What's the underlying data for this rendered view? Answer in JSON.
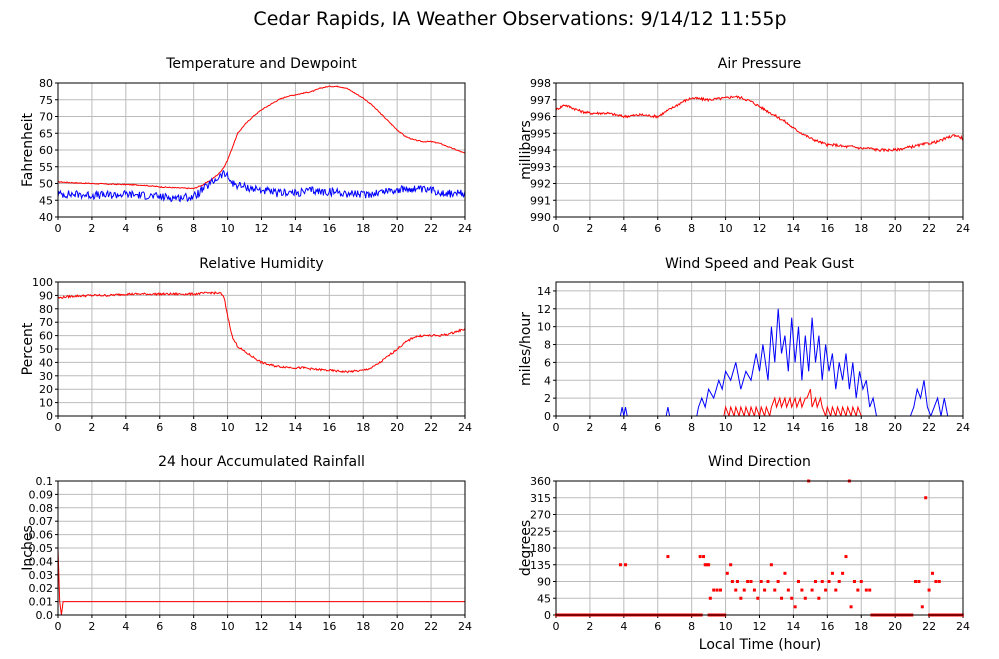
{
  "title": "Cedar Rapids, IA Weather Observations: 9/14/12 11:55p",
  "xlabel": "Local Time (hour)",
  "colors": {
    "red": "#ff0000",
    "blue": "#0000ff",
    "grid": "#bbbbbb"
  },
  "chart_data": [
    {
      "id": "temp",
      "type": "line",
      "title": "Temperature and Dewpoint",
      "xlabel": "",
      "ylabel": "Fahrenheit",
      "xlim": [
        0,
        24
      ],
      "ylim": [
        40,
        80
      ],
      "xticks": [
        "0",
        "2",
        "4",
        "6",
        "8",
        "10",
        "12",
        "14",
        "16",
        "18",
        "20",
        "22",
        "24"
      ],
      "yticks": [
        "40",
        "45",
        "50",
        "55",
        "60",
        "65",
        "70",
        "75",
        "80"
      ],
      "grid": true,
      "series": [
        {
          "color": "#ff0000",
          "noise": 0.15,
          "x": [
            0,
            1,
            2,
            3,
            4,
            5,
            6,
            7,
            8,
            8.5,
            9,
            9.5,
            9.8,
            10,
            10.3,
            10.6,
            11,
            11.5,
            12,
            12.5,
            13,
            13.5,
            14,
            14.5,
            15,
            15.5,
            16,
            16.5,
            17,
            17.5,
            18,
            18.5,
            19,
            19.5,
            20,
            20.5,
            21,
            21.5,
            22,
            22.5,
            23,
            23.5,
            24
          ],
          "y": [
            50.5,
            50.2,
            50,
            49.8,
            49.7,
            49.5,
            49,
            48.7,
            48.5,
            49.5,
            51,
            53,
            55,
            57,
            61,
            65,
            67.5,
            70,
            72,
            73.5,
            75,
            76,
            76.5,
            77,
            77.5,
            78.5,
            79,
            79,
            78.5,
            77,
            75.5,
            73.5,
            71,
            68.5,
            66,
            64,
            63,
            62.5,
            62.5,
            62,
            61,
            60,
            59
          ]
        },
        {
          "color": "#0000ff",
          "noise": 1.2,
          "x": [
            0,
            1,
            2,
            3,
            4,
            5,
            6,
            7,
            8,
            8.5,
            9,
            9.5,
            9.8,
            10,
            10.3,
            10.6,
            11,
            11.5,
            12,
            12.5,
            13,
            13.5,
            14,
            14.5,
            15,
            15.5,
            16,
            16.5,
            17,
            17.5,
            18,
            18.5,
            19,
            19.5,
            20,
            20.5,
            21,
            21.5,
            22,
            22.5,
            23,
            23.5,
            24
          ],
          "y": [
            46.8,
            46.8,
            46.5,
            46.5,
            46.8,
            46.5,
            46,
            45.8,
            46,
            48,
            50,
            52,
            53,
            52,
            50,
            49.5,
            49,
            48.5,
            48,
            47.5,
            47,
            47.5,
            47,
            47.5,
            48,
            47.5,
            47.5,
            47.5,
            47,
            47,
            46.5,
            47,
            47.5,
            48,
            48,
            48.3,
            48.5,
            48,
            48,
            47.5,
            47,
            47,
            46.8
          ]
        }
      ]
    },
    {
      "id": "pressure",
      "type": "line",
      "title": "Air Pressure",
      "xlabel": "",
      "ylabel": "millibars",
      "xlim": [
        0,
        24
      ],
      "ylim": [
        990,
        998
      ],
      "xticks": [
        "0",
        "2",
        "4",
        "6",
        "8",
        "10",
        "12",
        "14",
        "16",
        "18",
        "20",
        "22",
        "24"
      ],
      "yticks": [
        "990",
        "991",
        "992",
        "993",
        "994",
        "995",
        "996",
        "997",
        "998"
      ],
      "grid": true,
      "series": [
        {
          "color": "#ff0000",
          "noise": 0.08,
          "x": [
            0,
            0.5,
            1,
            1.5,
            2,
            3,
            4,
            5,
            6,
            6.5,
            7,
            7.5,
            8,
            9,
            10,
            10.5,
            11,
            11.5,
            12,
            12.5,
            13,
            13.5,
            14,
            14.5,
            15,
            15.5,
            16,
            16.5,
            17,
            17.5,
            18,
            18.5,
            19,
            19.5,
            20,
            20.5,
            21,
            21.5,
            22,
            22.5,
            23,
            23.5,
            24
          ],
          "y": [
            996.4,
            996.7,
            996.5,
            996.3,
            996.2,
            996.2,
            996,
            996.1,
            996,
            996.3,
            996.6,
            996.9,
            997.1,
            997,
            997.1,
            997.2,
            997.1,
            996.9,
            996.6,
            996.3,
            996,
            995.7,
            995.3,
            995,
            994.7,
            994.5,
            994.3,
            994.3,
            994.2,
            994.2,
            994.1,
            994.1,
            994,
            994,
            994,
            994.1,
            994.2,
            994.3,
            994.4,
            994.5,
            994.7,
            994.9,
            994.7
          ]
        }
      ]
    },
    {
      "id": "humidity",
      "type": "line",
      "title": "Relative Humidity",
      "xlabel": "",
      "ylabel": "Percent",
      "xlim": [
        0,
        24
      ],
      "ylim": [
        0,
        100
      ],
      "xticks": [
        "0",
        "2",
        "4",
        "6",
        "8",
        "10",
        "12",
        "14",
        "16",
        "18",
        "20",
        "22",
        "24"
      ],
      "yticks": [
        "0",
        "10",
        "20",
        "30",
        "40",
        "50",
        "60",
        "70",
        "80",
        "90",
        "100"
      ],
      "grid": true,
      "series": [
        {
          "color": "#ff0000",
          "noise": 0.8,
          "x": [
            0,
            0.5,
            1,
            2,
            3,
            3.5,
            4,
            5,
            6,
            7,
            8,
            8.5,
            9,
            9.6,
            9.8,
            10,
            10.3,
            10.6,
            11,
            11.5,
            12,
            12.5,
            13,
            13.5,
            14,
            14.5,
            15,
            15.5,
            16,
            16.5,
            17,
            17.5,
            18,
            18.5,
            19,
            19.5,
            20,
            20.5,
            21,
            21.5,
            22,
            22.5,
            23,
            23.5,
            24
          ],
          "y": [
            88,
            89,
            89.5,
            90,
            90,
            90.5,
            91,
            91,
            91,
            91,
            91,
            91.5,
            92,
            91.5,
            88,
            75,
            58,
            52,
            48,
            44,
            40,
            38,
            37,
            36.5,
            36,
            36,
            35,
            34.5,
            34,
            33.5,
            33,
            33.5,
            34,
            36,
            40,
            45,
            50,
            55,
            59,
            60,
            60,
            60,
            61,
            63,
            65
          ]
        }
      ]
    },
    {
      "id": "wind",
      "type": "line",
      "title": "Wind Speed and Peak Gust",
      "xlabel": "",
      "ylabel": "miles/hour",
      "xlim": [
        0,
        24
      ],
      "ylim": [
        0,
        15
      ],
      "xticks": [
        "0",
        "2",
        "4",
        "6",
        "8",
        "10",
        "12",
        "14",
        "16",
        "18",
        "20",
        "22",
        "24"
      ],
      "yticks": [
        "0",
        "2",
        "4",
        "6",
        "8",
        "10",
        "12",
        "14"
      ],
      "grid": true,
      "series": [
        {
          "color": "#0000ff",
          "noise": 0,
          "x": [
            0,
            3.8,
            3.9,
            4,
            4.1,
            4.2,
            6.5,
            6.6,
            6.7,
            8.3,
            8.4,
            8.6,
            8.8,
            9,
            9.3,
            9.6,
            9.8,
            10,
            10.3,
            10.6,
            10.9,
            11.2,
            11.5,
            11.8,
            12,
            12.2,
            12.5,
            12.7,
            12.9,
            13.1,
            13.3,
            13.5,
            13.7,
            13.9,
            14.1,
            14.3,
            14.5,
            14.7,
            14.9,
            15.1,
            15.3,
            15.5,
            15.7,
            15.9,
            16.1,
            16.3,
            16.5,
            16.7,
            16.9,
            17.1,
            17.3,
            17.5,
            17.7,
            17.9,
            18.1,
            18.3,
            18.5,
            18.7,
            18.9,
            20.9,
            21.1,
            21.3,
            21.5,
            21.7,
            21.9,
            22.1,
            22.3,
            22.5,
            22.7,
            22.9,
            23.1,
            24
          ],
          "y": [
            0,
            0,
            1,
            0,
            1,
            0,
            0,
            1,
            0,
            0,
            1,
            2,
            1,
            3,
            2,
            4,
            3,
            5,
            4,
            6,
            3,
            5,
            4,
            7,
            5,
            8,
            4,
            10,
            6,
            12,
            7,
            9,
            5,
            11,
            6,
            10,
            4,
            9,
            5,
            11,
            6,
            9,
            4,
            8,
            5,
            7,
            3,
            6,
            4,
            7,
            3,
            6,
            2,
            5,
            3,
            4,
            1,
            2,
            0,
            0,
            1,
            3,
            2,
            4,
            1,
            0,
            1,
            2,
            0,
            2,
            0,
            0
          ]
        },
        {
          "color": "#ff0000",
          "noise": 0,
          "x": [
            0,
            9.9,
            10.0,
            10.2,
            10.3,
            10.5,
            10.6,
            10.8,
            10.9,
            11.1,
            11.2,
            11.4,
            11.5,
            11.7,
            11.8,
            12.0,
            12.1,
            12.3,
            12.4,
            12.6,
            12.7,
            12.9,
            13.0,
            13.2,
            13.3,
            13.5,
            13.6,
            13.8,
            13.9,
            14.1,
            14.2,
            14.4,
            14.5,
            14.7,
            14.8,
            15.0,
            15.1,
            15.3,
            15.4,
            15.6,
            15.7,
            15.9,
            16.0,
            16.2,
            16.3,
            16.5,
            16.6,
            16.8,
            16.9,
            17.1,
            17.2,
            17.4,
            17.5,
            17.7,
            17.8,
            18.0,
            24
          ],
          "y": [
            0,
            0,
            1,
            0,
            1,
            0,
            1,
            0,
            1,
            0,
            1,
            0,
            1,
            0,
            1,
            0,
            1,
            0,
            1,
            0,
            1,
            2,
            1,
            2,
            1,
            2,
            1,
            2,
            1,
            2,
            1,
            2,
            1,
            2,
            2,
            3,
            1,
            2,
            1,
            2,
            1,
            0,
            1,
            0,
            1,
            0,
            1,
            0,
            1,
            0,
            1,
            0,
            1,
            0,
            1,
            0,
            0
          ]
        }
      ]
    },
    {
      "id": "rain",
      "type": "line",
      "title": "24 hour Accumulated Rainfall",
      "xlabel": "",
      "ylabel": "Inches",
      "xlim": [
        0,
        24
      ],
      "ylim": [
        0,
        0.1
      ],
      "xticks": [
        "0",
        "2",
        "4",
        "6",
        "8",
        "10",
        "12",
        "14",
        "16",
        "18",
        "20",
        "22",
        "24"
      ],
      "yticks": [
        "0.0",
        "0.01",
        "0.02",
        "0.03",
        "0.04",
        "0.05",
        "0.06",
        "0.07",
        "0.08",
        "0.09",
        "0.1"
      ],
      "grid": true,
      "series": [
        {
          "color": "#ff0000",
          "noise": 0,
          "x": [
            0,
            0.1,
            0.2,
            0.3,
            24
          ],
          "y": [
            0.05,
            0.01,
            0,
            0.01,
            0.01
          ]
        }
      ]
    },
    {
      "id": "direction",
      "type": "scatter",
      "title": "Wind Direction",
      "xlabel": "Local Time (hour)",
      "ylabel": "degrees",
      "xlim": [
        0,
        24
      ],
      "ylim": [
        0,
        360
      ],
      "xticks": [
        "0",
        "2",
        "4",
        "6",
        "8",
        "10",
        "12",
        "14",
        "16",
        "18",
        "20",
        "22",
        "24"
      ],
      "yticks": [
        "0",
        "45",
        "90",
        "135",
        "180",
        "225",
        "270",
        "315",
        "360"
      ],
      "grid": true,
      "series": [
        {
          "color": "#ff0000",
          "points": [
            [
              3.8,
              135
            ],
            [
              4.1,
              135
            ],
            [
              6.6,
              157
            ],
            [
              8.5,
              157
            ],
            [
              8.7,
              157
            ],
            [
              8.8,
              135
            ],
            [
              8.9,
              135
            ],
            [
              9.0,
              135
            ],
            [
              9.1,
              45
            ],
            [
              9.3,
              67
            ],
            [
              9.5,
              67
            ],
            [
              9.7,
              67
            ],
            [
              10.1,
              112
            ],
            [
              10.3,
              135
            ],
            [
              10.4,
              90
            ],
            [
              10.6,
              67
            ],
            [
              10.7,
              90
            ],
            [
              10.9,
              45
            ],
            [
              11.1,
              67
            ],
            [
              11.3,
              90
            ],
            [
              11.5,
              90
            ],
            [
              11.7,
              67
            ],
            [
              11.9,
              45
            ],
            [
              12.1,
              90
            ],
            [
              12.3,
              67
            ],
            [
              12.5,
              90
            ],
            [
              12.7,
              135
            ],
            [
              12.9,
              67
            ],
            [
              13.1,
              90
            ],
            [
              13.3,
              45
            ],
            [
              13.5,
              112
            ],
            [
              13.7,
              67
            ],
            [
              13.9,
              45
            ],
            [
              14.1,
              22
            ],
            [
              14.3,
              90
            ],
            [
              14.5,
              67
            ],
            [
              14.7,
              45
            ],
            [
              14.9,
              360
            ],
            [
              15.1,
              67
            ],
            [
              15.3,
              90
            ],
            [
              15.5,
              45
            ],
            [
              15.7,
              90
            ],
            [
              15.9,
              67
            ],
            [
              16.1,
              90
            ],
            [
              16.3,
              112
            ],
            [
              16.5,
              67
            ],
            [
              16.7,
              90
            ],
            [
              16.9,
              112
            ],
            [
              17.1,
              157
            ],
            [
              17.3,
              360
            ],
            [
              17.4,
              22
            ],
            [
              17.6,
              90
            ],
            [
              17.8,
              67
            ],
            [
              18.0,
              90
            ],
            [
              18.3,
              67
            ],
            [
              18.5,
              67
            ],
            [
              21.2,
              90
            ],
            [
              21.4,
              90
            ],
            [
              21.6,
              22
            ],
            [
              21.8,
              315
            ],
            [
              22.0,
              67
            ],
            [
              22.2,
              112
            ],
            [
              22.4,
              90
            ],
            [
              22.6,
              90
            ]
          ],
          "zero_ranges": [
            [
              0,
              8.6
            ],
            [
              9.0,
              10.0
            ],
            [
              18.6,
              21.0
            ],
            [
              22.0,
              24
            ]
          ]
        }
      ]
    }
  ]
}
